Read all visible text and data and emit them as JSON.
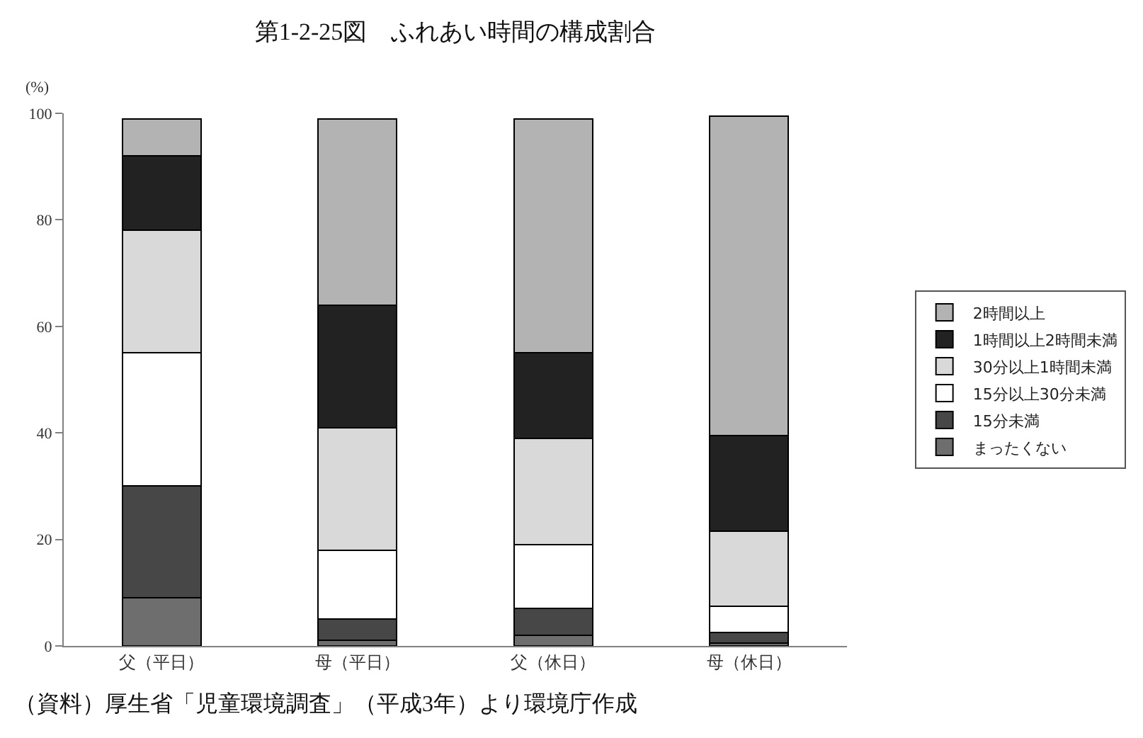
{
  "chart_data": {
    "type": "bar",
    "title": "第1-2-25図　ふれあい時間の構成割合",
    "categories": [
      "父（平日）",
      "母（平日）",
      "父（休日）",
      "母（休日）"
    ],
    "series": [
      {
        "name": "まったくない",
        "color": "#6e6e6e",
        "values": [
          9,
          1,
          2,
          0.5
        ]
      },
      {
        "name": "15分未満",
        "color": "#474747",
        "values": [
          21,
          4,
          5,
          2
        ]
      },
      {
        "name": "15分以上30分未満",
        "color": "#ffffff",
        "values": [
          25,
          13,
          12,
          5
        ]
      },
      {
        "name": "30分以上1時間未満",
        "color": "#d9d9d9",
        "values": [
          23,
          23,
          20,
          14
        ]
      },
      {
        "name": "1時間以上2時間未満",
        "color": "#222222",
        "values": [
          14,
          23,
          16,
          18
        ]
      },
      {
        "name": "2時間以上",
        "color": "#b3b3b3",
        "values": [
          7,
          35,
          44,
          60
        ]
      }
    ],
    "stacked": true,
    "ylim": [
      0,
      100
    ],
    "yticks": [
      0,
      20,
      40,
      60,
      80,
      100
    ],
    "ylabel": "(%)",
    "legend": "right",
    "annotations": [
      "（資料）厚生省「児童環境調査」（平成3年）より環境庁作成"
    ]
  }
}
